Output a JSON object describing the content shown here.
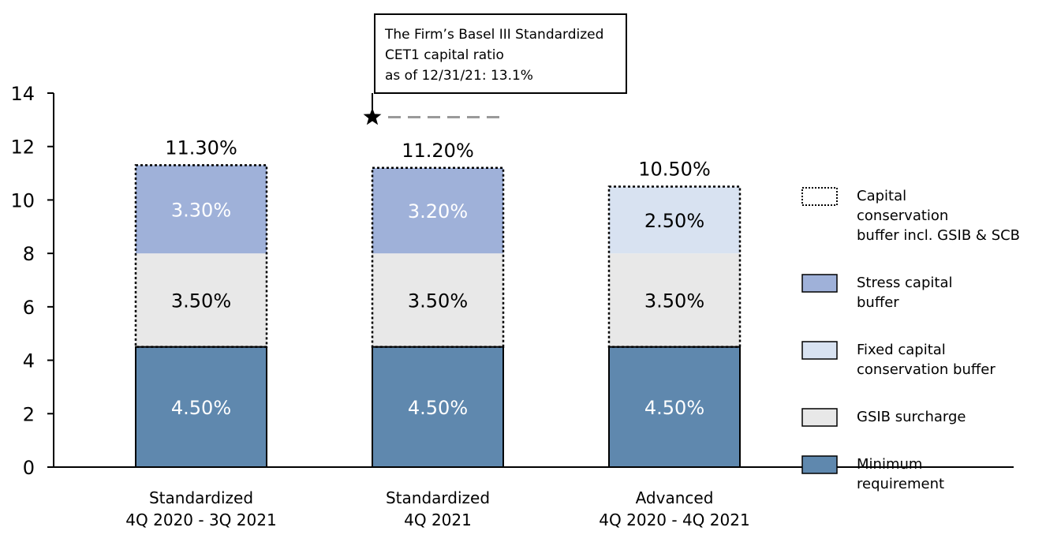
{
  "chart_data": {
    "type": "bar",
    "stacked": true,
    "ylim": [
      0,
      14
    ],
    "yticks": [
      "0",
      "2",
      "4",
      "6",
      "8",
      "10",
      "12",
      "14"
    ],
    "categories": [
      [
        "Standardized",
        "4Q 2020 - 3Q 2021"
      ],
      [
        "Standardized",
        "4Q 2021"
      ],
      [
        "Advanced",
        "4Q 2020 - 4Q 2021"
      ]
    ],
    "series": [
      {
        "name": "Minimum requirement",
        "values": [
          4.5,
          4.5,
          4.5
        ],
        "labels": [
          "4.50%",
          "4.50%",
          "4.50%"
        ],
        "color": "#5f88ae",
        "text_color": "#ffffff"
      },
      {
        "name": "GSIB surcharge",
        "values": [
          3.5,
          3.5,
          3.5
        ],
        "labels": [
          "3.50%",
          "3.50%",
          "3.50%"
        ],
        "color": "#e8e8e8",
        "text_color": "#000000"
      },
      {
        "name": "Stress capital buffer",
        "values": [
          3.3,
          3.2,
          0
        ],
        "labels": [
          "3.30%",
          "3.20%",
          ""
        ],
        "color": "#9fb1d9",
        "text_color": "#ffffff"
      },
      {
        "name": "Fixed capital conservation buffer",
        "values": [
          0,
          0,
          2.5
        ],
        "labels": [
          "",
          "",
          "2.50%"
        ],
        "color": "#d8e2f1",
        "text_color": "#000000"
      }
    ],
    "totals": [
      11.3,
      11.2,
      10.5
    ],
    "total_labels": [
      "11.30%",
      "11.20%",
      "10.50%"
    ],
    "legend": [
      {
        "lines": [
          "Capital",
          "conservation",
          "buffer incl. GSIB & SCB"
        ],
        "style": "dotted",
        "color": "#ffffff"
      },
      {
        "lines": [
          "Stress capital",
          "buffer"
        ],
        "style": "solid",
        "color": "#9fb1d9"
      },
      {
        "lines": [
          "Fixed capital",
          "conservation buffer"
        ],
        "style": "solid",
        "color": "#d8e2f1"
      },
      {
        "lines": [
          "GSIB surcharge"
        ],
        "style": "solid",
        "color": "#e8e8e8"
      },
      {
        "lines": [
          "Minimum",
          "requirement"
        ],
        "style": "solid",
        "color": "#5f88ae"
      }
    ],
    "legend_position": "right",
    "annotation": {
      "lines": [
        "The Firm’s Basel III Standardized",
        "CET1 capital ratio",
        "as of 12/31/21: 13.1%"
      ],
      "value": 13.1,
      "marker": "star",
      "category_index": 1
    },
    "grid": false
  }
}
